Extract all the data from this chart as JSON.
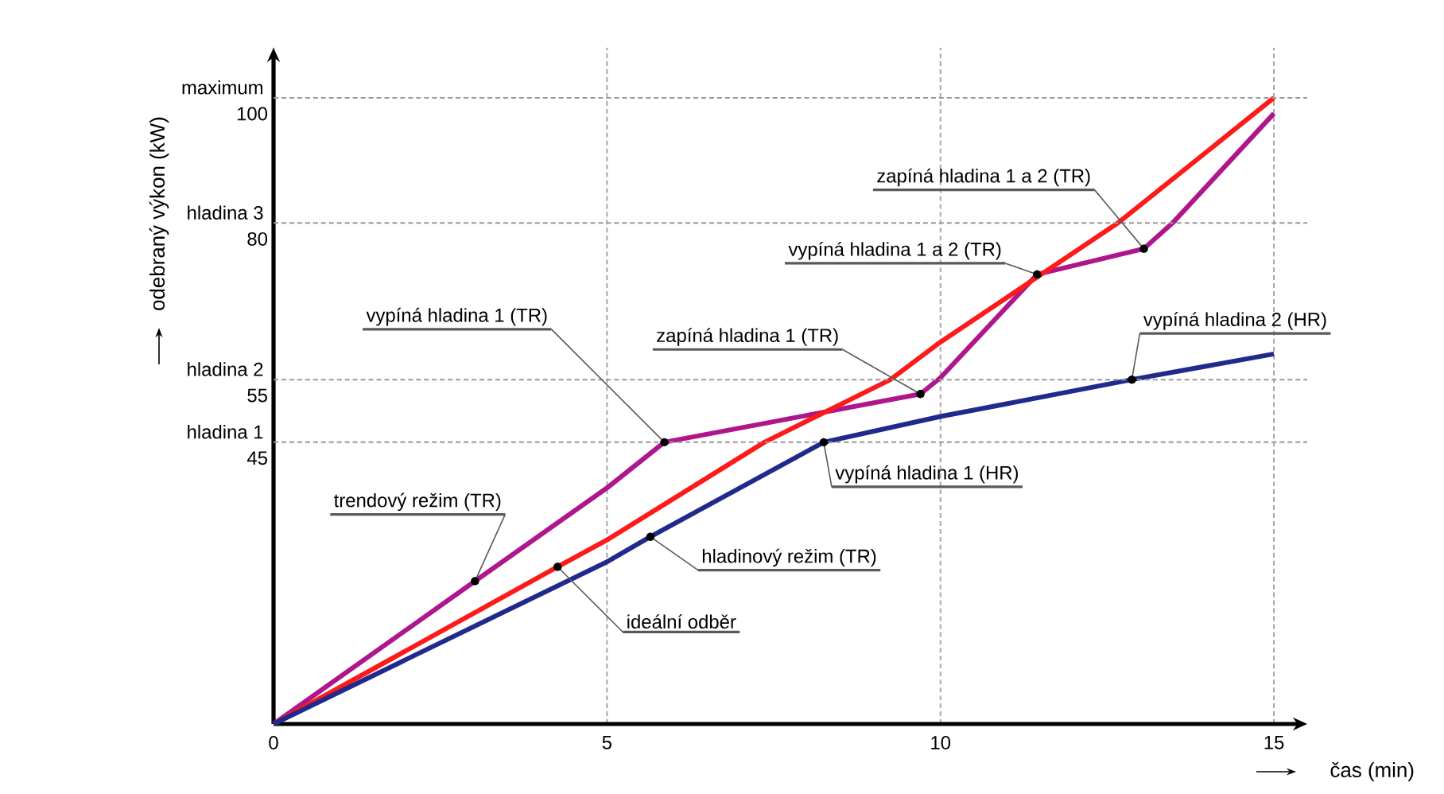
{
  "chart_data": {
    "type": "line",
    "xlabel": "čas (min)",
    "ylabel": "odebraný výkon (kW)",
    "xlim": [
      0,
      15.5
    ],
    "ylim": [
      0,
      108
    ],
    "xticks": [
      0,
      5,
      10,
      15
    ],
    "yticks": [
      45,
      55,
      80,
      100
    ],
    "ref_lines": [
      {
        "axis": "y",
        "value": 45,
        "label": "hladina 1",
        "line_style": "dashed"
      },
      {
        "axis": "y",
        "value": 55,
        "label": "hladina 2",
        "line_style": "dashed"
      },
      {
        "axis": "y",
        "value": 80,
        "label": "hladina 3",
        "line_style": "dashed"
      },
      {
        "axis": "y",
        "value": 100,
        "label": "maximum",
        "line_style": "dashed"
      }
    ],
    "grid": "x",
    "series": [
      {
        "color": "#b0168c",
        "x": [
          0,
          3.02,
          5,
          5.86,
          9.7,
          10,
          11.45,
          13.05,
          13.48,
          15
        ],
        "values": [
          0,
          22.8,
          37.7,
          45,
          52.7,
          55.3,
          71.8,
          75.9,
          80,
          97.5
        ]
      },
      {
        "color": "#ff1a1a",
        "x": [
          0,
          4.26,
          5,
          7.36,
          9.25,
          10,
          12.66,
          15
        ],
        "values": [
          0,
          25.1,
          29.4,
          45,
          55,
          61,
          80,
          100
        ]
      },
      {
        "color": "#1f2a8c",
        "x": [
          0,
          5,
          5.65,
          8.25,
          10,
          12.87,
          15
        ],
        "values": [
          0,
          25.9,
          29.9,
          45,
          49.1,
          55,
          59.1
        ]
      }
    ],
    "annotations": [
      {
        "text": "trendový režim (TR)",
        "x": 3.02,
        "y": 22.8
      },
      {
        "text": "ideální odběr",
        "x": 4.26,
        "y": 25.1
      },
      {
        "text": "hladinový režim (TR)",
        "x": 5.65,
        "y": 29.9
      },
      {
        "text": "vypíná hladina 1 (TR)",
        "x": 5.86,
        "y": 45
      },
      {
        "text": "zapíná hladina 1 (TR)",
        "x": 9.7,
        "y": 52.7
      },
      {
        "text": "vypíná hladina 1 a 2 (TR)",
        "x": 11.45,
        "y": 71.8
      },
      {
        "text": "zapíná hladina 1 a 2 (TR)",
        "x": 13.05,
        "y": 75.9
      },
      {
        "text": "vypíná hladina 1 (HR)",
        "x": 8.25,
        "y": 45
      },
      {
        "text": "vypíná hladina 2 (HR)",
        "x": 12.87,
        "y": 55
      }
    ]
  }
}
